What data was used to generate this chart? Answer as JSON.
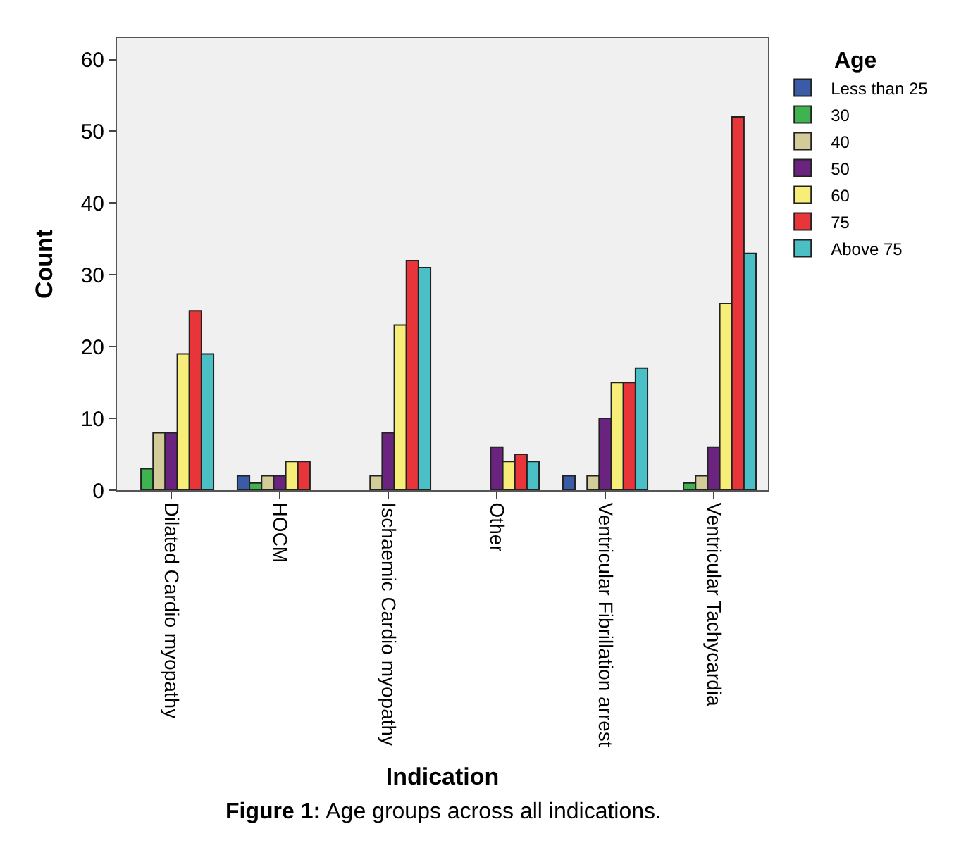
{
  "chart_data": {
    "type": "bar",
    "xlabel": "Indication",
    "ylabel": "Count",
    "legend_title": "Age",
    "legend": "top right",
    "categories": [
      "Dilated Cardio myopathy",
      "HOCM",
      "Ischaemic Cardio myopathy",
      "Other",
      "Ventricular Fibrillation arrest",
      "Ventricular Tachycardia"
    ],
    "series": [
      {
        "name": "Less than 25",
        "color": "#3a5ba7",
        "values": [
          null,
          2,
          null,
          null,
          2,
          null
        ]
      },
      {
        "name": "30",
        "color": "#3fb34f",
        "values": [
          3,
          1,
          null,
          null,
          null,
          1
        ]
      },
      {
        "name": "40",
        "color": "#d4cc98",
        "values": [
          8,
          2,
          2,
          null,
          2,
          2
        ]
      },
      {
        "name": "50",
        "color": "#6b2380",
        "values": [
          8,
          2,
          8,
          6,
          10,
          6
        ]
      },
      {
        "name": "60",
        "color": "#f7ee79",
        "values": [
          19,
          4,
          23,
          4,
          15,
          26
        ]
      },
      {
        "name": "75",
        "color": "#e8353a",
        "values": [
          25,
          4,
          32,
          5,
          15,
          52
        ]
      },
      {
        "name": "Above 75",
        "color": "#4bbfc6",
        "values": [
          19,
          null,
          31,
          4,
          17,
          33
        ]
      }
    ],
    "ylim": [
      0,
      63
    ],
    "yticks": [
      0,
      10,
      20,
      30,
      40,
      50,
      60
    ],
    "grid": false,
    "annotations": [
      "Figure 1: Age groups across all indications."
    ]
  }
}
